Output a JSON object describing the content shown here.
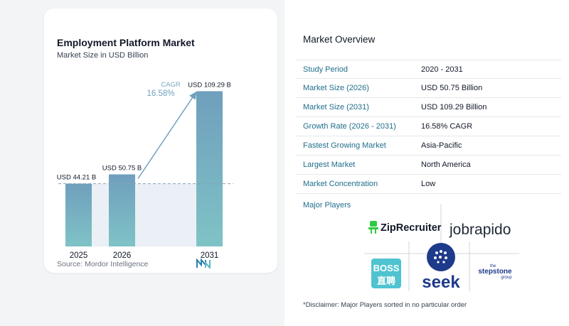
{
  "chart": {
    "title": "Employment Platform Market",
    "subtitle": "Market Size in USD Billion",
    "source": "Source: Mordor Intelligence",
    "cagr_label": "CAGR",
    "cagr_value": "16.58%"
  },
  "chart_data": {
    "type": "bar",
    "categories": [
      "2025",
      "2026",
      "2031"
    ],
    "values": [
      44.21,
      50.75,
      109.29
    ],
    "data_labels": [
      "USD 44.21 B",
      "USD 50.75 B",
      "USD 109.29 B"
    ],
    "xlabel": "",
    "ylabel": "",
    "ylim": [
      0,
      110
    ]
  },
  "overview": {
    "title": "Market Overview",
    "rows": [
      {
        "label": "Study Period",
        "value": "2020 - 2031"
      },
      {
        "label": "Market Size (2026)",
        "value": "USD 50.75 Billion"
      },
      {
        "label": "Market Size (2031)",
        "value": "USD 109.29 Billion"
      },
      {
        "label": "Growth Rate (2026 - 2031)",
        "value": "16.58% CAGR"
      },
      {
        "label": "Fastest Growing Market",
        "value": "Asia-Pacific"
      },
      {
        "label": "Largest Market",
        "value": "North America"
      },
      {
        "label": "Market Concentration",
        "value": "Low"
      }
    ]
  },
  "players": {
    "title": "Major Players",
    "logos": [
      "ZipRecruiter",
      "jobrapido",
      "BOSS",
      "直聘",
      "seek",
      "the",
      "stepstone",
      "group"
    ],
    "disclaimer": "*Disclaimer: Major Players sorted in no particular order"
  },
  "colors": {
    "bar_top": "#6f9fbd",
    "bar_bottom": "#7fc3c6",
    "accent": "#1f6e8c",
    "band": "#dce6ef"
  }
}
